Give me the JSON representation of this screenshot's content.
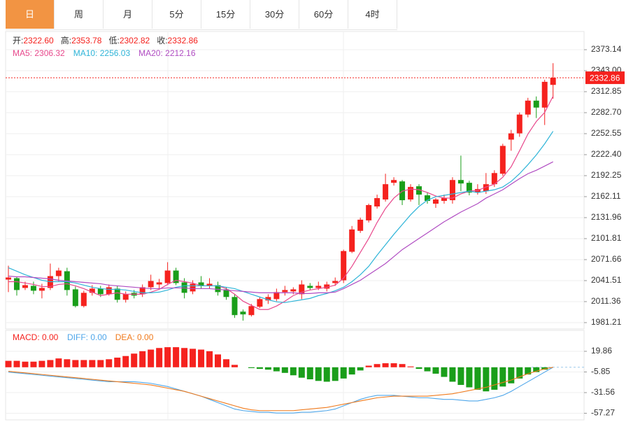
{
  "tabs": [
    "日",
    "周",
    "月",
    "5分",
    "15分",
    "30分",
    "60分",
    "4时"
  ],
  "active_tab": 0,
  "chart_data": [
    {
      "type": "candlestick",
      "info": [
        {
          "label": "开:",
          "value": "2322.60"
        },
        {
          "label": "高:",
          "value": "2353.78"
        },
        {
          "label": "低:",
          "value": "2302.82"
        },
        {
          "label": "收:",
          "value": "2332.86"
        }
      ],
      "ylim": [
        1972.14,
        2399.27
      ],
      "yticks": [
        2373.14,
        {
          "value": 2343,
          "label": "2343.00"
        },
        2312.85,
        {
          "value": 2282.7,
          "label": "2282.70"
        },
        2252.55,
        {
          "value": 2222.4,
          "label": "2222.40"
        },
        2192.25,
        2162.11,
        2131.96,
        2101.81,
        2071.66,
        2041.51,
        2011.36,
        1981.21
      ],
      "grid": true,
      "up_color": "#f5221e",
      "down_color": "#1a9e1a",
      "last_price": {
        "value": 2332.86,
        "label": "2332.86"
      },
      "open": [
        2043,
        2045,
        2031,
        2034,
        2027,
        2031,
        2048,
        2055,
        2029,
        2005,
        2024,
        2030,
        2022,
        2030,
        2014,
        2024,
        2022,
        2032,
        2036,
        2038,
        2056,
        2039,
        2026,
        2039,
        2034,
        2035,
        2029,
        2018,
        1997,
        1992,
        2004,
        2013,
        2015,
        2025,
        2026,
        2022,
        2034,
        2031,
        2030,
        2038,
        2042,
        2083,
        2113,
        2128,
        2148,
        2158,
        2182,
        2184,
        2158,
        2177,
        2164,
        2152,
        2156,
        2157,
        2186,
        2182,
        2168,
        2170,
        2180,
        2195,
        2244,
        2253,
        2280,
        2300,
        2290,
        2322.6
      ],
      "high": [
        2063,
        2047,
        2040,
        2040,
        2037,
        2066,
        2060,
        2060,
        2033,
        2027,
        2035,
        2034,
        2036,
        2034,
        2026,
        2028,
        2036,
        2050,
        2044,
        2068,
        2060,
        2045,
        2042,
        2048,
        2045,
        2040,
        2032,
        2022,
        2000,
        2008,
        2018,
        2022,
        2030,
        2034,
        2032,
        2042,
        2038,
        2040,
        2040,
        2046,
        2086,
        2120,
        2132,
        2152,
        2165,
        2195,
        2190,
        2186,
        2180,
        2180,
        2168,
        2160,
        2165,
        2190,
        2221,
        2185,
        2180,
        2196,
        2200,
        2238,
        2258,
        2283,
        2304,
        2306,
        2330,
        2353.78
      ],
      "low": [
        2025,
        2020,
        2028,
        2022,
        2016,
        2028,
        2040,
        2020,
        2003,
        2003,
        2020,
        2018,
        2020,
        2010,
        2010,
        2016,
        2018,
        2028,
        2030,
        2035,
        2035,
        2016,
        2022,
        2030,
        2030,
        2020,
        2014,
        1988,
        1984,
        1990,
        2002,
        2008,
        2012,
        2020,
        2022,
        2015,
        2028,
        2028,
        2026,
        2034,
        2038,
        2081,
        2110,
        2125,
        2145,
        2155,
        2178,
        2150,
        2155,
        2150,
        2152,
        2146,
        2152,
        2152,
        2170,
        2164,
        2165,
        2166,
        2176,
        2192,
        2228,
        2248,
        2276,
        2275,
        2265,
        2302.82
      ],
      "close": [
        2046,
        2028,
        2035,
        2027,
        2031,
        2048,
        2056,
        2028,
        2005,
        2024,
        2030,
        2022,
        2032,
        2014,
        2022,
        2020,
        2032,
        2041,
        2039,
        2056,
        2038,
        2024,
        2037,
        2034,
        2037,
        2025,
        2018,
        1992,
        1993,
        2005,
        2015,
        2018,
        2025,
        2028,
        2029,
        2036,
        2031,
        2034,
        2036,
        2041,
        2084,
        2115,
        2129,
        2150,
        2160,
        2180,
        2186,
        2157,
        2176,
        2165,
        2156,
        2158,
        2160,
        2186,
        2181,
        2168,
        2173,
        2180,
        2196,
        2235,
        2253,
        2280,
        2300,
        2290,
        2327,
        2332.86
      ],
      "ma": [
        {
          "legend": "MA5: 2306.32",
          "color": "#e8488c",
          "values": [
            2040,
            2040,
            2038,
            2036,
            2033,
            2033,
            2036,
            2037,
            2034,
            2030,
            2025,
            2020,
            2022,
            2024,
            2022,
            2022,
            2022,
            2025,
            2029,
            2036,
            2042,
            2040,
            2038,
            2034,
            2034,
            2034,
            2030,
            2022,
            2012,
            2006,
            2000,
            2000,
            2005,
            2012,
            2020,
            2025,
            2028,
            2030,
            2032,
            2035,
            2045,
            2062,
            2082,
            2102,
            2125,
            2145,
            2160,
            2170,
            2173,
            2172,
            2168,
            2163,
            2160,
            2160,
            2166,
            2170,
            2171,
            2176,
            2180,
            2190,
            2205,
            2228,
            2252,
            2270,
            2283,
            2306.32
          ]
        },
        {
          "legend": "MA10: 2256.03",
          "color": "#2eb4d8",
          "values": [
            2060,
            2055,
            2050,
            2046,
            2042,
            2040,
            2040,
            2040,
            2038,
            2035,
            2032,
            2030,
            2029,
            2029,
            2028,
            2026,
            2024,
            2024,
            2025,
            2028,
            2032,
            2034,
            2034,
            2034,
            2034,
            2034,
            2032,
            2030,
            2026,
            2022,
            2018,
            2014,
            2011,
            2010,
            2012,
            2014,
            2016,
            2020,
            2023,
            2027,
            2032,
            2040,
            2050,
            2062,
            2078,
            2093,
            2108,
            2122,
            2136,
            2148,
            2157,
            2162,
            2164,
            2166,
            2168,
            2170,
            2168,
            2170,
            2172,
            2176,
            2184,
            2195,
            2208,
            2222,
            2238,
            2256.03
          ]
        },
        {
          "legend": "MA20: 2212.16",
          "color": "#b04cc2",
          "values": [
            2048,
            2047,
            2047,
            2046,
            2045,
            2044,
            2042,
            2041,
            2040,
            2039,
            2038,
            2037,
            2035,
            2034,
            2033,
            2032,
            2031,
            2030,
            2030,
            2031,
            2031,
            2031,
            2030,
            2030,
            2030,
            2029,
            2028,
            2027,
            2026,
            2025,
            2024,
            2024,
            2024,
            2024,
            2024,
            2023,
            2023,
            2024,
            2024,
            2025,
            2030,
            2036,
            2042,
            2050,
            2058,
            2066,
            2076,
            2086,
            2094,
            2102,
            2110,
            2118,
            2126,
            2133,
            2140,
            2146,
            2152,
            2160,
            2166,
            2172,
            2180,
            2188,
            2195,
            2200,
            2206,
            2212.16
          ]
        }
      ]
    },
    {
      "type": "macd",
      "ylim": [
        -65.55,
        46.0
      ],
      "yticks": [
        19.86,
        -5.85,
        -31.56,
        -57.27
      ],
      "hist": {
        "legend": "MACD: 0.00",
        "up_color": "#f5221e",
        "down_color": "#1a9e1a",
        "values": [
          8,
          8,
          7,
          7,
          8,
          9,
          11,
          10,
          9,
          9,
          9,
          9,
          10,
          12,
          14,
          17,
          20,
          22,
          24,
          25,
          25,
          24,
          23,
          22,
          20,
          16,
          10,
          3,
          0,
          -1,
          -2,
          -3,
          -5,
          -7,
          -10,
          -13,
          -15,
          -17,
          -18,
          -17,
          -14,
          -9,
          -4,
          2,
          4,
          5,
          5,
          4,
          1,
          -2,
          -5,
          -8,
          -12,
          -18,
          -22,
          -25,
          -28,
          -30,
          -28,
          -24,
          -20,
          -14,
          -9,
          -6,
          -3,
          0
        ]
      },
      "lines": [
        {
          "legend": "DIFF: 0.00",
          "color": "#4ea6ea",
          "values": [
            -6,
            -7,
            -8,
            -9,
            -10,
            -11,
            -12,
            -13,
            -14,
            -15,
            -16,
            -17,
            -18,
            -18,
            -18,
            -18,
            -19,
            -20,
            -22,
            -24,
            -27,
            -30,
            -33,
            -36,
            -40,
            -44,
            -48,
            -52,
            -54,
            -55,
            -56,
            -56,
            -57,
            -57,
            -57,
            -56,
            -56,
            -55,
            -54,
            -52,
            -48,
            -44,
            -40,
            -37,
            -35,
            -35,
            -35,
            -36,
            -37,
            -38,
            -38,
            -39,
            -40,
            -40,
            -41,
            -42,
            -42,
            -40,
            -38,
            -35,
            -30,
            -24,
            -18,
            -12,
            -6,
            0
          ]
        },
        {
          "legend": "DEA: 0.00",
          "color": "#f07a1c",
          "values": [
            -5,
            -6,
            -7,
            -8,
            -9,
            -10,
            -11,
            -12,
            -13,
            -14,
            -15,
            -16,
            -17,
            -18,
            -19,
            -20,
            -21,
            -22,
            -24,
            -26,
            -28,
            -30,
            -33,
            -36,
            -39,
            -42,
            -45,
            -48,
            -51,
            -53,
            -54,
            -54,
            -54,
            -54,
            -54,
            -53,
            -52,
            -51,
            -50,
            -48,
            -46,
            -44,
            -42,
            -40,
            -38,
            -37,
            -36,
            -36,
            -36,
            -36,
            -36,
            -35,
            -34,
            -33,
            -31,
            -29,
            -27,
            -25,
            -22,
            -19,
            -16,
            -12,
            -8,
            -5,
            -2,
            0
          ]
        }
      ]
    }
  ]
}
